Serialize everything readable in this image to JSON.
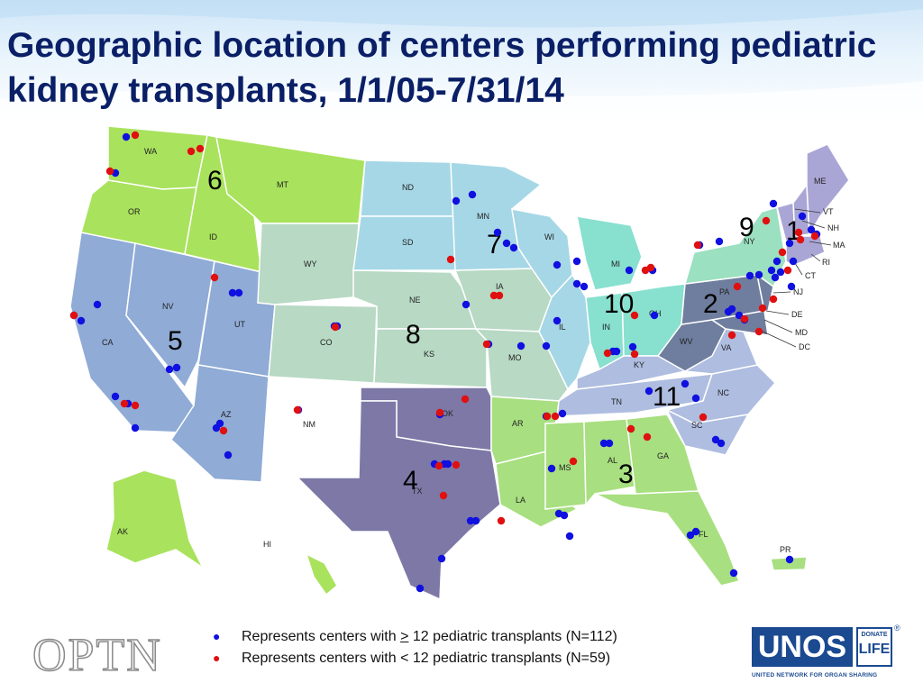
{
  "title": "Geographic location of centers performing pediatric kidney transplants, 1/1/05-7/31/14",
  "states": [
    "WA",
    "OR",
    "ID",
    "MT",
    "WY",
    "ND",
    "SD",
    "NE",
    "KS",
    "CO",
    "NV",
    "UT",
    "CA",
    "AZ",
    "NM",
    "TX",
    "OK",
    "AR",
    "LA",
    "MO",
    "IA",
    "MN",
    "WI",
    "IL",
    "MI",
    "IN",
    "OH",
    "KY",
    "TN",
    "MS",
    "AL",
    "GA",
    "FL",
    "SC",
    "NC",
    "VA",
    "WV",
    "PA",
    "NY",
    "NJ",
    "DE",
    "MD",
    "DC",
    "CT",
    "RI",
    "MA",
    "NH",
    "VT",
    "ME",
    "AK",
    "HI",
    "PR"
  ],
  "regions": [
    "1",
    "2",
    "3",
    "4",
    "5",
    "6",
    "7",
    "8",
    "9",
    "10",
    "11"
  ],
  "colors": {
    "region_1": "#a9a6d6",
    "region_2": "#6f7e9e",
    "region_3": "#a8df80",
    "region_4": "#7d78a6",
    "region_5": "#8fabd6",
    "region_6": "#a9e25c",
    "region_7": "#a6d7e6",
    "region_8": "#b8d9c4",
    "region_9": "#9be0c0",
    "region_10": "#88e0cf",
    "region_11": "#aebde0",
    "dot_large": "#1010e0",
    "dot_small": "#e01010",
    "title": "#0a1f66"
  },
  "legend": {
    "large": {
      "prefix": "Represents centers with ",
      "ge": ">",
      "suffix": " 12 pediatric transplants (N=112)"
    },
    "small": {
      "text": "Represents centers with < 12 pediatric transplants (N=59)"
    }
  },
  "logos": {
    "optn": "OPTN",
    "unos": "UNOS",
    "donate_top": "DONATE",
    "donate_bottom": "LIFE",
    "unos_sub": "UNITED NETWORK FOR ORGAN SHARING",
    "reg": "®"
  }
}
